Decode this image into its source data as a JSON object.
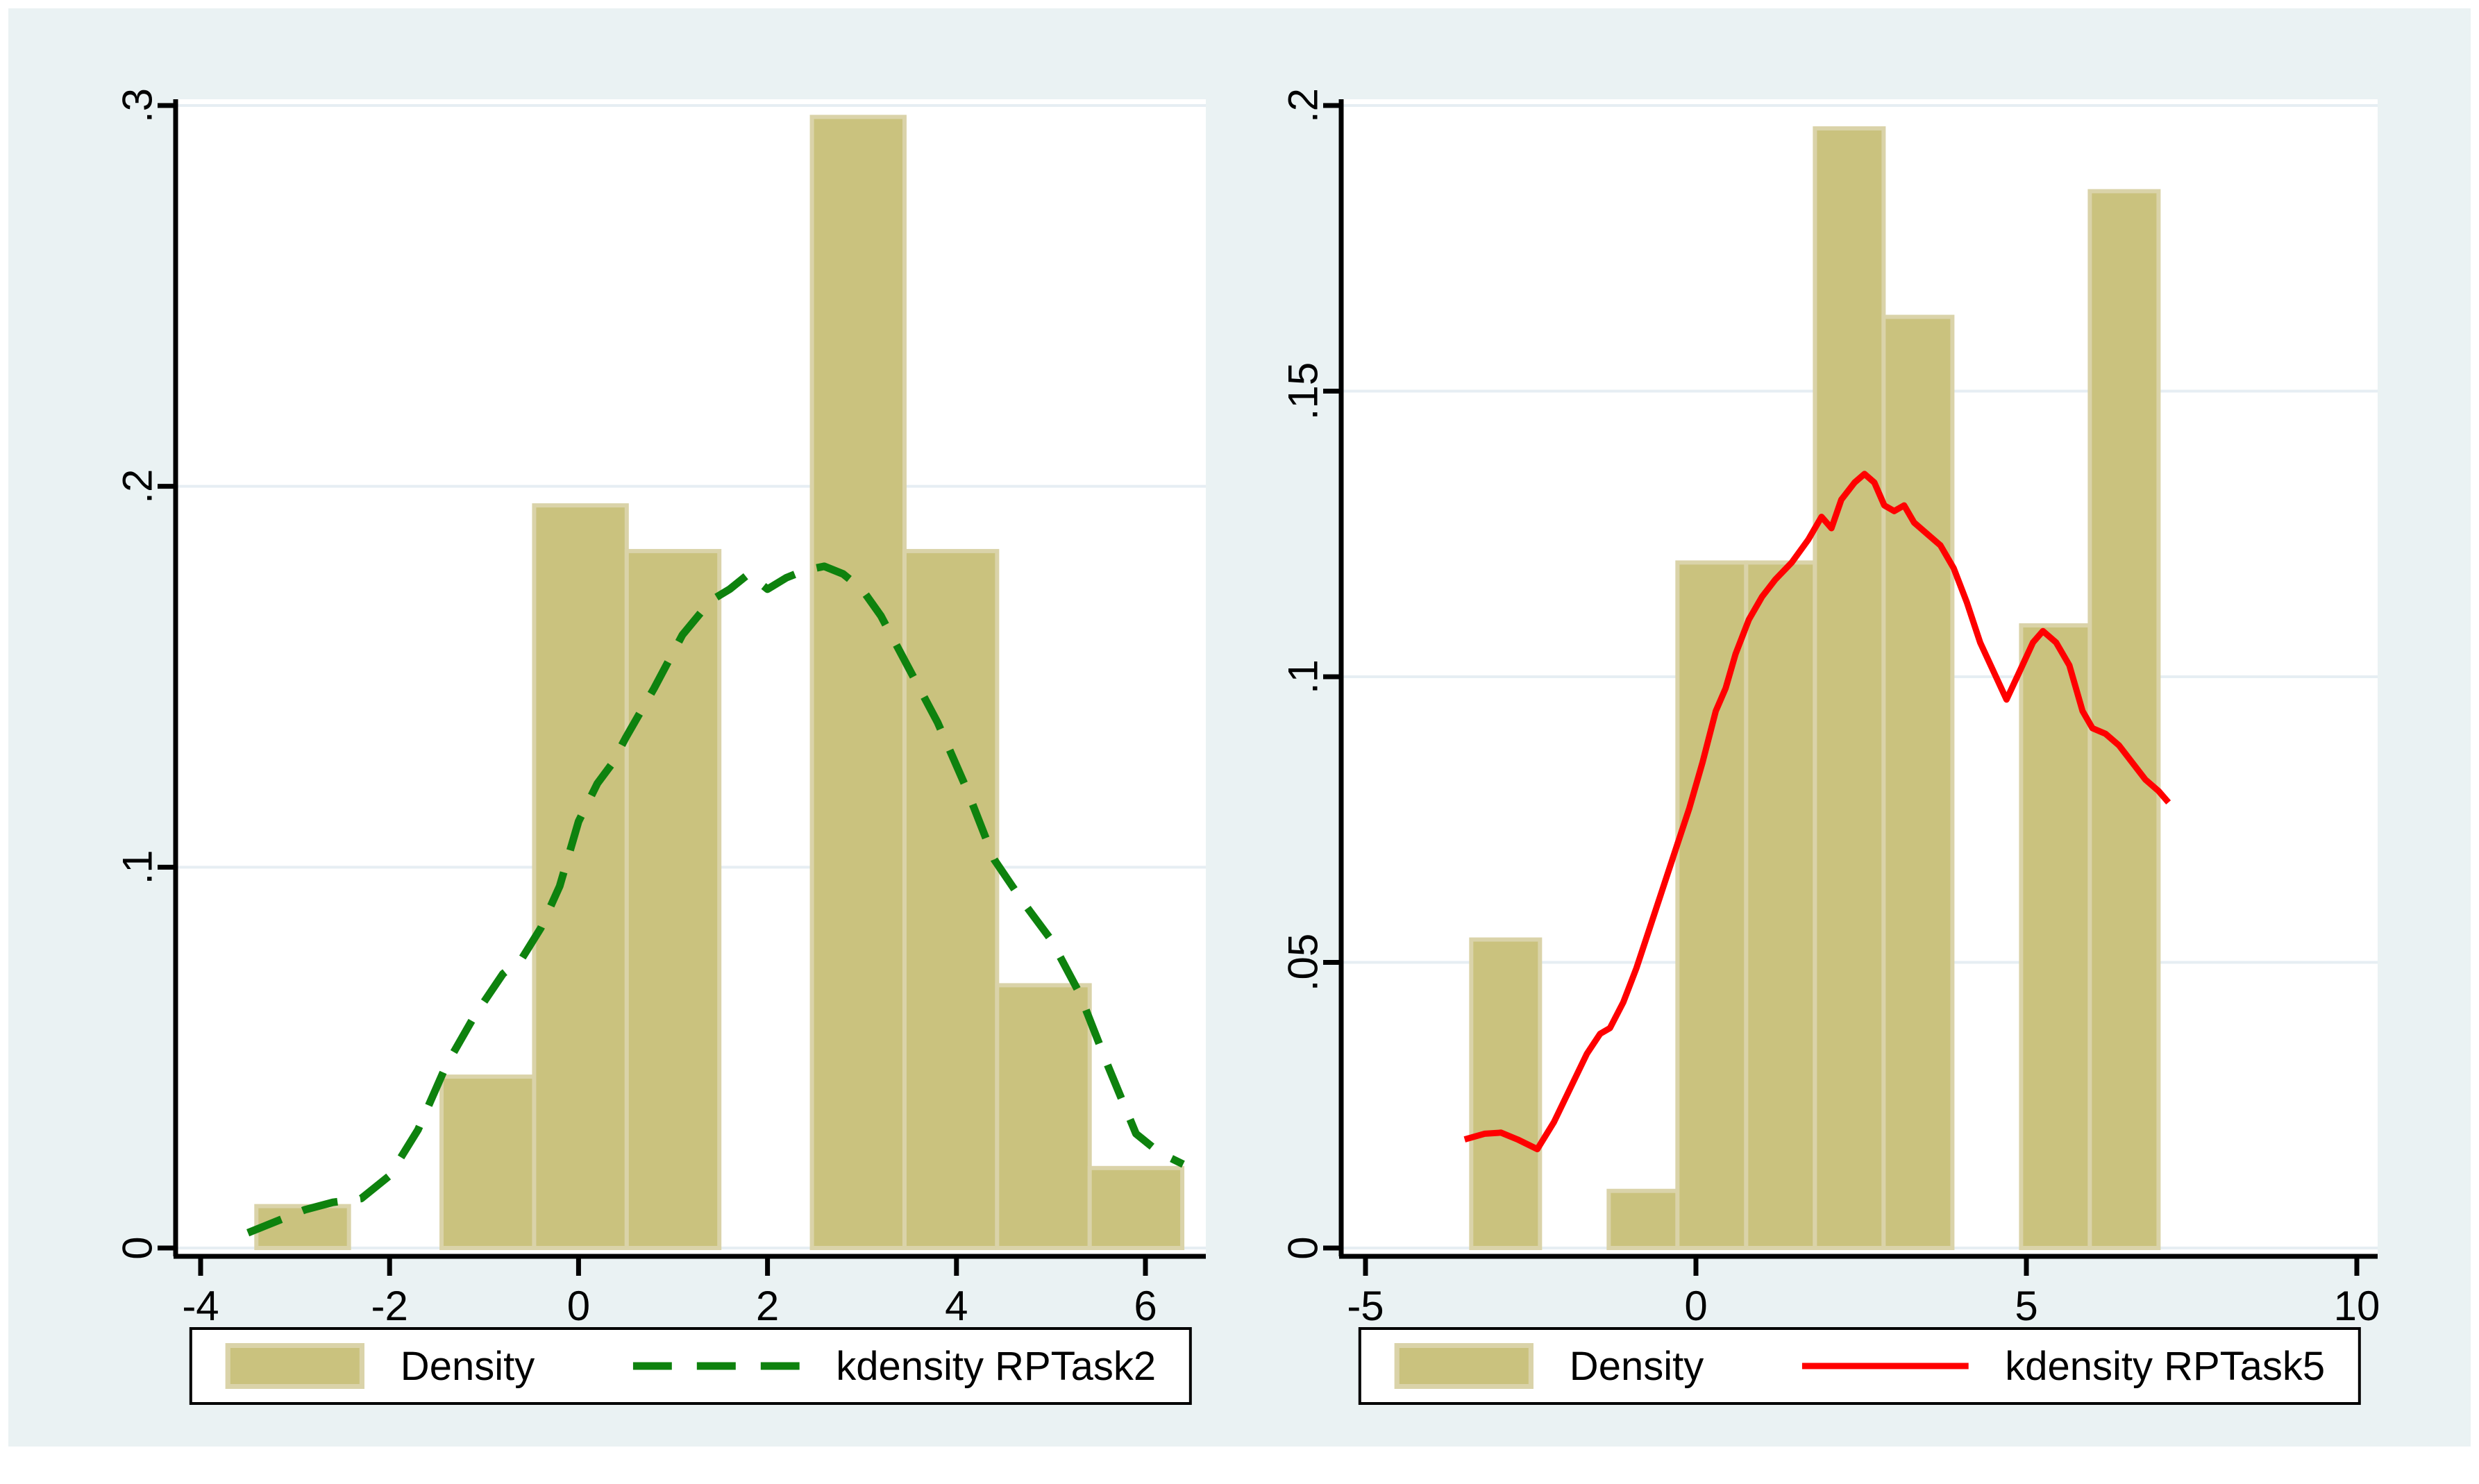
{
  "figure": {
    "background": "#ffffff",
    "canvas_color": "#eaf2f3",
    "plot_color": "#ffffff",
    "grid_color": "#e6eef3",
    "axis_color": "#000000",
    "bar_fill": "#cac27e",
    "bar_edge": "#dad3a9"
  },
  "chart_data": [
    {
      "id": "left",
      "type": "histogram+kde-line",
      "title": "",
      "xlabel": "",
      "ylabel": "",
      "xlim": [
        -4.26,
        6.64
      ],
      "ylim": [
        0,
        0.3
      ],
      "grid": true,
      "x_tick_values": [
        -4,
        -2,
        0,
        2,
        4,
        6
      ],
      "x_tick_labels": [
        "-4",
        "-2",
        "0",
        "2",
        "4",
        "6"
      ],
      "y_tick_values": [
        0,
        0.1,
        0.2,
        0.3
      ],
      "y_tick_labels": [
        "0",
        ".1",
        ".2",
        ".3"
      ],
      "line_color": "#0e820e",
      "line_style": "dashed",
      "bins": [
        {
          "x0": -3.41,
          "x1": -2.43,
          "density": 0.011
        },
        {
          "x0": -1.45,
          "x1": -0.47,
          "density": 0.045
        },
        {
          "x0": -0.47,
          "x1": 0.51,
          "density": 0.195
        },
        {
          "x0": 0.51,
          "x1": 1.49,
          "density": 0.183
        },
        {
          "x0": 2.47,
          "x1": 3.45,
          "density": 0.297
        },
        {
          "x0": 3.45,
          "x1": 4.43,
          "density": 0.183
        },
        {
          "x0": 4.43,
          "x1": 5.41,
          "density": 0.069
        },
        {
          "x0": 5.41,
          "x1": 6.39,
          "density": 0.021
        }
      ],
      "kde": [
        [
          -3.5,
          0.004
        ],
        [
          -3.2,
          0.007
        ],
        [
          -2.9,
          0.01
        ],
        [
          -2.6,
          0.012
        ],
        [
          -2.3,
          0.013
        ],
        [
          -2.0,
          0.019
        ],
        [
          -1.7,
          0.031
        ],
        [
          -1.4,
          0.048
        ],
        [
          -1.1,
          0.061
        ],
        [
          -0.8,
          0.072
        ],
        [
          -0.6,
          0.076
        ],
        [
          -0.4,
          0.084
        ],
        [
          -0.2,
          0.095
        ],
        [
          0.0,
          0.112
        ],
        [
          0.2,
          0.122
        ],
        [
          0.35,
          0.127
        ],
        [
          0.5,
          0.134
        ],
        [
          0.8,
          0.147
        ],
        [
          1.1,
          0.161
        ],
        [
          1.4,
          0.17
        ],
        [
          1.6,
          0.173
        ],
        [
          1.8,
          0.177
        ],
        [
          2.0,
          0.173
        ],
        [
          2.2,
          0.176
        ],
        [
          2.4,
          0.178
        ],
        [
          2.6,
          0.179
        ],
        [
          2.8,
          0.177
        ],
        [
          3.0,
          0.173
        ],
        [
          3.2,
          0.166
        ],
        [
          3.5,
          0.152
        ],
        [
          3.8,
          0.138
        ],
        [
          4.1,
          0.121
        ],
        [
          4.4,
          0.102
        ],
        [
          4.7,
          0.091
        ],
        [
          5.0,
          0.081
        ],
        [
          5.3,
          0.067
        ],
        [
          5.6,
          0.048
        ],
        [
          5.9,
          0.03
        ],
        [
          6.15,
          0.025
        ],
        [
          6.4,
          0.022
        ]
      ],
      "legend_items": [
        {
          "label": "Density",
          "swatch": "bar"
        },
        {
          "label": "kdensity RPTask2",
          "swatch": "dashed-line"
        }
      ]
    },
    {
      "id": "right",
      "type": "histogram+kde-line",
      "title": "",
      "xlabel": "",
      "ylabel": "",
      "xlim": [
        -5.37,
        10.32
      ],
      "ylim": [
        0,
        0.2
      ],
      "grid": true,
      "x_tick_values": [
        -5,
        0,
        5,
        10
      ],
      "x_tick_labels": [
        "-5",
        "0",
        "5",
        "10"
      ],
      "y_tick_values": [
        0,
        0.05,
        0.1,
        0.15,
        0.2
      ],
      "y_tick_labels": [
        "0",
        ".05",
        ".1",
        ".15",
        ".2"
      ],
      "line_color": "#ff0000",
      "line_style": "solid",
      "bins": [
        {
          "x0": -3.4,
          "x1": -2.36,
          "density": 0.054
        },
        {
          "x0": -1.32,
          "x1": -0.28,
          "density": 0.01
        },
        {
          "x0": -0.28,
          "x1": 0.76,
          "density": 0.12
        },
        {
          "x0": 0.76,
          "x1": 1.8,
          "density": 0.12
        },
        {
          "x0": 1.8,
          "x1": 2.84,
          "density": 0.196
        },
        {
          "x0": 2.84,
          "x1": 3.88,
          "density": 0.163
        },
        {
          "x0": 4.92,
          "x1": 5.96,
          "density": 0.109
        },
        {
          "x0": 5.96,
          "x1": 7.0,
          "density": 0.185
        }
      ],
      "kde": [
        [
          -3.5,
          0.019
        ],
        [
          -3.2,
          0.02
        ],
        [
          -2.95,
          0.0202
        ],
        [
          -2.7,
          0.019
        ],
        [
          -2.4,
          0.0173
        ],
        [
          -2.15,
          0.022
        ],
        [
          -1.9,
          0.028
        ],
        [
          -1.65,
          0.034
        ],
        [
          -1.45,
          0.0375
        ],
        [
          -1.3,
          0.0385
        ],
        [
          -1.1,
          0.043
        ],
        [
          -0.9,
          0.049
        ],
        [
          -0.7,
          0.056
        ],
        [
          -0.5,
          0.063
        ],
        [
          -0.3,
          0.07
        ],
        [
          -0.1,
          0.077
        ],
        [
          0.1,
          0.085
        ],
        [
          0.3,
          0.094
        ],
        [
          0.45,
          0.098
        ],
        [
          0.6,
          0.104
        ],
        [
          0.8,
          0.11
        ],
        [
          1.0,
          0.114
        ],
        [
          1.2,
          0.117
        ],
        [
          1.45,
          0.12
        ],
        [
          1.7,
          0.124
        ],
        [
          1.9,
          0.128
        ],
        [
          2.05,
          0.126
        ],
        [
          2.2,
          0.131
        ],
        [
          2.4,
          0.134
        ],
        [
          2.55,
          0.1355
        ],
        [
          2.7,
          0.134
        ],
        [
          2.85,
          0.13
        ],
        [
          3.0,
          0.129
        ],
        [
          3.15,
          0.13
        ],
        [
          3.3,
          0.127
        ],
        [
          3.5,
          0.125
        ],
        [
          3.7,
          0.123
        ],
        [
          3.9,
          0.119
        ],
        [
          4.1,
          0.113
        ],
        [
          4.3,
          0.106
        ],
        [
          4.5,
          0.101
        ],
        [
          4.7,
          0.096
        ],
        [
          4.9,
          0.101
        ],
        [
          5.1,
          0.106
        ],
        [
          5.25,
          0.108
        ],
        [
          5.45,
          0.106
        ],
        [
          5.65,
          0.102
        ],
        [
          5.85,
          0.094
        ],
        [
          6.0,
          0.091
        ],
        [
          6.2,
          0.09
        ],
        [
          6.4,
          0.088
        ],
        [
          6.6,
          0.085
        ],
        [
          6.8,
          0.082
        ],
        [
          7.0,
          0.08
        ],
        [
          7.15,
          0.078
        ]
      ],
      "legend_items": [
        {
          "label": "Density",
          "swatch": "bar"
        },
        {
          "label": "kdensity RPTask5",
          "swatch": "solid-line"
        }
      ]
    }
  ]
}
